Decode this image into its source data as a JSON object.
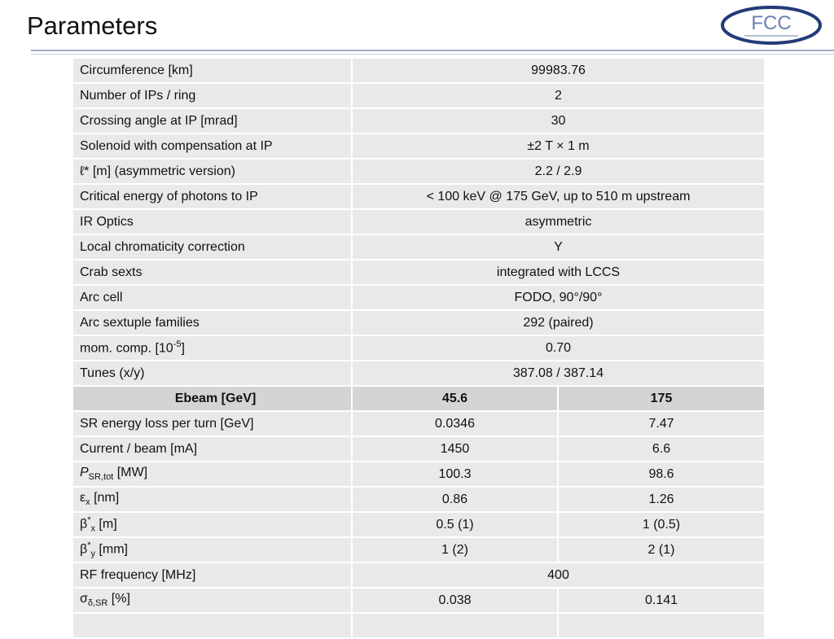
{
  "header": {
    "title": "Parameters",
    "logo_text": "FCC"
  },
  "table": {
    "general_rows": [
      {
        "label": "Circumference [km]",
        "value": "99983.76"
      },
      {
        "label": "Number of IPs / ring",
        "value": "2"
      },
      {
        "label": "Crossing angle at IP [mrad]",
        "value": "30"
      },
      {
        "label": "Solenoid with compensation at IP",
        "value": "±2 T × 1 m"
      },
      {
        "label": "ℓ* [m] (asymmetric version)",
        "value": "2.2 / 2.9"
      },
      {
        "label": "Critical energy of photons to IP",
        "value": "< 100 keV @ 175 GeV, up to 510 m upstream"
      },
      {
        "label": "IR Optics",
        "value": "asymmetric"
      },
      {
        "label": "Local chromaticity correction",
        "value": "Y"
      },
      {
        "label": "Crab sexts",
        "value": "integrated with LCCS"
      },
      {
        "label": "Arc cell",
        "value": "FODO, 90°/90°"
      },
      {
        "label": "Arc sextuple families",
        "value": "292 (paired)"
      },
      {
        "label": [
          {
            "text": "mom. comp. [10"
          },
          {
            "text": "-5",
            "position": "sup"
          },
          {
            "text": "]"
          }
        ],
        "value": "0.70"
      },
      {
        "label": "Tunes (x/y)",
        "value": "387.08 / 387.14"
      }
    ],
    "energy_header": {
      "label": "Ebeam [GeV]",
      "values": [
        "45.6",
        "175"
      ]
    },
    "energy_rows": [
      {
        "label": "SR energy loss per turn [GeV]",
        "values": [
          "0.0346",
          "7.47"
        ]
      },
      {
        "label": "Current / beam [mA]",
        "values": [
          "1450",
          "6.6"
        ]
      },
      {
        "label": [
          {
            "text": "P",
            "position": "italic"
          },
          {
            "text": "SR,tot",
            "position": "sub"
          },
          {
            "text": " [MW]"
          }
        ],
        "values": [
          "100.3",
          "98.6"
        ]
      },
      {
        "label": [
          {
            "text": "ε"
          },
          {
            "text": "x",
            "position": "sub"
          },
          {
            "text": " [nm]"
          }
        ],
        "values": [
          "0.86",
          "1.26"
        ]
      },
      {
        "label": [
          {
            "text": "β"
          },
          {
            "text": "*",
            "position": "sup"
          },
          {
            "text": "x",
            "position": "sub"
          },
          {
            "text": " [m]"
          }
        ],
        "values": [
          "0.5 (1)",
          "1 (0.5)"
        ]
      },
      {
        "label": [
          {
            "text": "β"
          },
          {
            "text": "*",
            "position": "sup"
          },
          {
            "text": "y",
            "position": "sub"
          },
          {
            "text": " [mm]"
          }
        ],
        "values": [
          "1 (2)",
          "2 (1)"
        ]
      },
      {
        "label": "RF frequency [MHz]",
        "values": [
          "400"
        ]
      },
      {
        "label": [
          {
            "text": "σ"
          },
          {
            "text": "δ,SR",
            "position": "sub"
          },
          {
            "text": " [%]"
          }
        ],
        "values": [
          "0.038",
          "0.141"
        ]
      }
    ]
  }
}
